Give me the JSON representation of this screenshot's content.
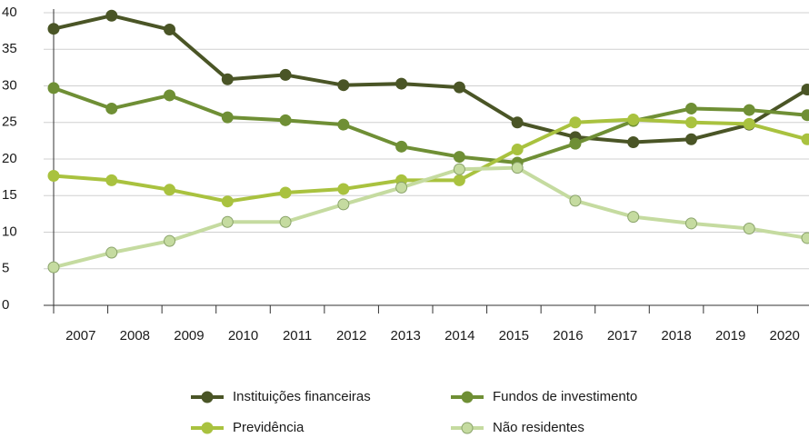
{
  "chart_data": {
    "type": "line",
    "categories": [
      "2007",
      "2008",
      "2009",
      "2010",
      "2011",
      "2012",
      "2013",
      "2014",
      "2015",
      "2016",
      "2017",
      "2018",
      "2019",
      "2020"
    ],
    "series": [
      {
        "name": "Instituições financeiras",
        "color": "#4a5526",
        "values": [
          37.8,
          39.6,
          37.7,
          30.9,
          31.5,
          30.1,
          30.3,
          29.8,
          25.0,
          23.0,
          22.3,
          22.7,
          24.7,
          29.5
        ]
      },
      {
        "name": "Fundos de investimento",
        "color": "#6f8f35",
        "values": [
          29.7,
          26.9,
          28.7,
          25.7,
          25.3,
          24.7,
          21.7,
          20.3,
          19.5,
          22.1,
          25.2,
          26.9,
          26.7,
          26.0
        ]
      },
      {
        "name": "Previdência",
        "color": "#a9c23f",
        "values": [
          17.7,
          17.1,
          15.8,
          14.2,
          15.4,
          15.9,
          17.1,
          17.1,
          21.3,
          25.0,
          25.4,
          25.0,
          24.8,
          22.7
        ]
      },
      {
        "name": "Não residentes",
        "color": "#c5dba0",
        "values": [
          5.2,
          7.2,
          8.8,
          11.4,
          11.4,
          13.8,
          16.1,
          18.6,
          18.8,
          14.3,
          12.1,
          11.2,
          10.5,
          9.2
        ]
      }
    ],
    "ylim": [
      0,
      40
    ],
    "yticks": [
      0,
      5,
      10,
      15,
      20,
      25,
      30,
      35,
      40
    ],
    "grid": true
  }
}
